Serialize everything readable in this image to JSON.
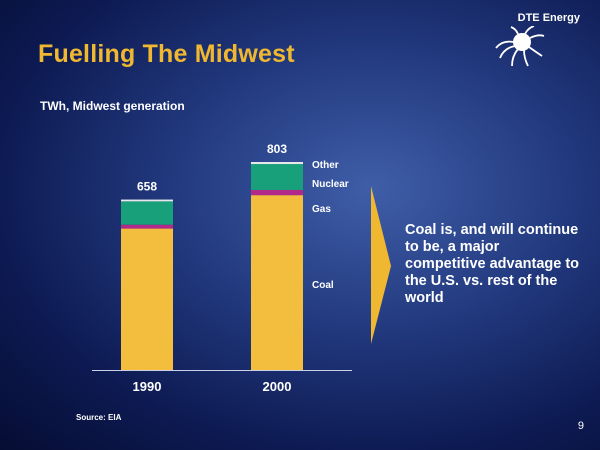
{
  "header": {
    "brand": "DTE Energy",
    "title": "Fuelling The Midwest",
    "subtitle": "TWh, Midwest generation"
  },
  "callout": {
    "text": "Coal is, and will continue to be, a major competitive advantage to the U.S. vs. rest of the world"
  },
  "footer": {
    "source": "Source:  EIA",
    "page_number": "9"
  },
  "colors": {
    "coal": "#f3bd3d",
    "gas": "#b12a8a",
    "nuclear": "#17a07a",
    "other": "#e8e8e8",
    "title": "#f0b830",
    "arrow": "#f0b830"
  },
  "chart_data": {
    "type": "bar",
    "stacked": true,
    "title": "TWh, Midwest generation",
    "categories": [
      "1990",
      "2000"
    ],
    "totals": [
      658,
      803
    ],
    "series": [
      {
        "name": "Coal",
        "values": [
          546,
          675
        ]
      },
      {
        "name": "Gas",
        "values": [
          15,
          20
        ]
      },
      {
        "name": "Nuclear",
        "values": [
          90,
          100
        ]
      },
      {
        "name": "Other",
        "values": [
          7,
          8
        ]
      }
    ],
    "segment_labels": [
      "Coal",
      "Gas",
      "Nuclear",
      "Other"
    ],
    "ylim": [
      0,
      830
    ]
  }
}
